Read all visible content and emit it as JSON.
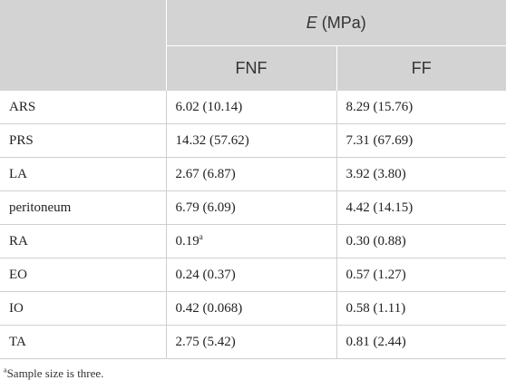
{
  "table": {
    "header": {
      "symbol": "E",
      "unit": " (MPa)",
      "col_fnf": "FNF",
      "col_ff": "FF"
    },
    "rows": [
      {
        "label": "ARS",
        "fnf": "6.02 (10.14)",
        "fnf_sup": "",
        "ff": "8.29 (15.76)"
      },
      {
        "label": "PRS",
        "fnf": "14.32 (57.62)",
        "fnf_sup": "",
        "ff": "7.31 (67.69)"
      },
      {
        "label": "LA",
        "fnf": "2.67 (6.87)",
        "fnf_sup": "",
        "ff": "3.92 (3.80)"
      },
      {
        "label": "peritoneum",
        "fnf": "6.79 (6.09)",
        "fnf_sup": "",
        "ff": "4.42 (14.15)"
      },
      {
        "label": "RA",
        "fnf": "0.19",
        "fnf_sup": "a",
        "ff": "0.30 (0.88)"
      },
      {
        "label": "EO",
        "fnf": "0.24 (0.37)",
        "fnf_sup": "",
        "ff": "0.57 (1.27)"
      },
      {
        "label": "IO",
        "fnf": "0.42 (0.068)",
        "fnf_sup": "",
        "ff": "0.58 (1.11)"
      },
      {
        "label": "TA",
        "fnf": "2.75 (5.42)",
        "fnf_sup": "",
        "ff": "0.81 (2.44)"
      }
    ]
  },
  "footnote": {
    "marker": "a",
    "text": "Sample size is three."
  }
}
